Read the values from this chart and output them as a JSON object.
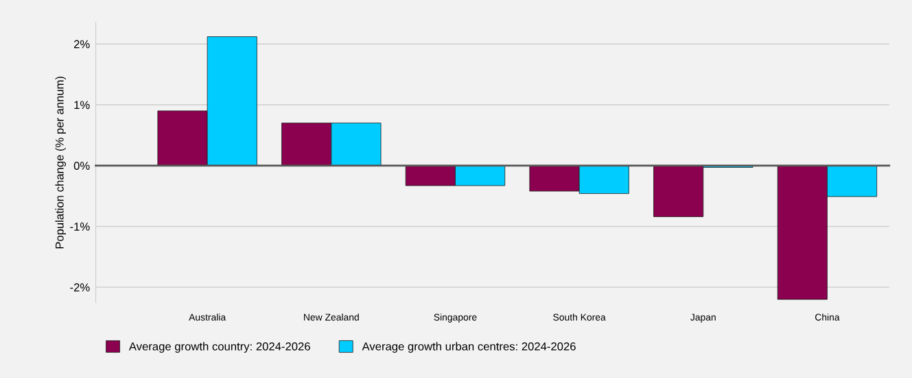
{
  "chart_data": {
    "type": "bar",
    "ylabel": "Population change (% per annum)",
    "categories": [
      "Australia",
      "New Zealand",
      "Singapore",
      "South Korea",
      "Japan",
      "China"
    ],
    "series": [
      {
        "name": "Average growth country: 2024-2026",
        "color": "#8b004f",
        "values": [
          0.9,
          0.7,
          -0.33,
          -0.42,
          -0.84,
          -2.2
        ]
      },
      {
        "name": "Average growth urban centres: 2024-2026",
        "color": "#00ccff",
        "values": [
          2.12,
          0.7,
          -0.33,
          -0.46,
          -0.03,
          -0.51
        ]
      }
    ],
    "ylim": [
      -2.25,
      2.35
    ],
    "yticks": [
      {
        "value": -2,
        "label": "-2%"
      },
      {
        "value": -1,
        "label": "-1%"
      },
      {
        "value": 0,
        "label": "0%"
      },
      {
        "value": 1,
        "label": "1%"
      },
      {
        "value": 2,
        "label": "2%"
      }
    ],
    "grid": "y",
    "legend": "bottom left"
  }
}
